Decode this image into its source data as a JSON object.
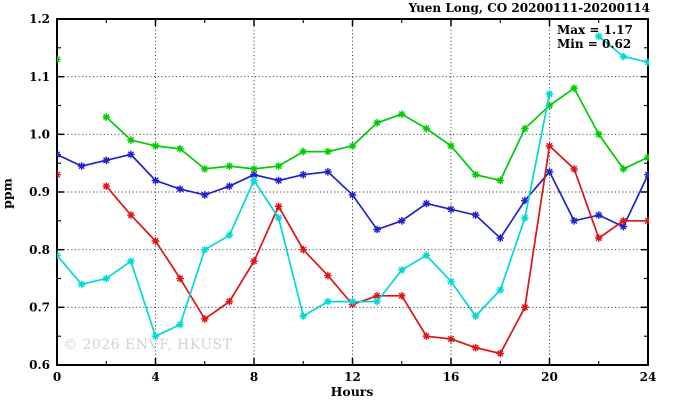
{
  "title": "Yuen Long, CO 20200111-20200114",
  "annotations": {
    "max_label": "Max = 1.17",
    "min_label": "Min = 0.62"
  },
  "watermark": "© 2026 ENVF, HKUST",
  "chart_data": {
    "type": "line",
    "title": "Yuen Long, CO 20200111-20200114",
    "xlabel": "Hours",
    "ylabel": "ppm",
    "xlim": [
      0,
      24
    ],
    "ylim": [
      0.6,
      1.2
    ],
    "grid": true,
    "legend_position": "none",
    "x_tick_values": [
      0,
      4,
      8,
      12,
      16,
      20,
      24
    ],
    "x_tick_labels": [
      "0",
      "4",
      "8",
      "12",
      "16",
      "20",
      "24"
    ],
    "x_minor_step": 2,
    "y_tick_values": [
      0.6,
      0.7,
      0.8,
      0.9,
      1.0,
      1.1,
      1.2
    ],
    "y_tick_labels": [
      "0.6",
      "0.7",
      "0.8",
      "0.9",
      "1.0",
      "1.1",
      "1.2"
    ],
    "y_minor_step": 0.05,
    "x_grid_values": [
      4,
      8,
      12,
      16,
      20
    ],
    "y_grid_values": [
      0.7,
      0.8,
      0.9,
      1.0,
      1.1
    ],
    "stat_max": 1.17,
    "stat_min": 0.62,
    "x": [
      0,
      1,
      2,
      3,
      4,
      5,
      6,
      7,
      8,
      9,
      10,
      11,
      12,
      13,
      14,
      15,
      16,
      17,
      18,
      19,
      20,
      21,
      22,
      23,
      24
    ],
    "series": [
      {
        "name": "series-green",
        "color": "#00cc00",
        "values": [
          1.13,
          null,
          1.03,
          0.99,
          0.98,
          0.975,
          0.94,
          0.945,
          0.94,
          0.945,
          0.97,
          0.97,
          0.98,
          1.02,
          1.035,
          1.01,
          0.98,
          0.93,
          0.92,
          1.01,
          1.05,
          1.08,
          1.0,
          0.94,
          0.96
        ]
      },
      {
        "name": "series-blue",
        "color": "#2222cc",
        "values": [
          0.965,
          0.945,
          0.955,
          0.965,
          0.92,
          0.905,
          0.895,
          0.91,
          0.93,
          0.92,
          0.93,
          0.935,
          0.895,
          0.835,
          0.85,
          0.88,
          0.87,
          0.86,
          0.82,
          0.885,
          0.935,
          0.85,
          0.86,
          0.84,
          0.93
        ]
      },
      {
        "name": "series-red",
        "color": "#dd1414",
        "values": [
          0.93,
          null,
          0.91,
          0.86,
          0.815,
          0.75,
          0.68,
          0.71,
          0.78,
          0.875,
          0.8,
          0.755,
          0.705,
          0.72,
          0.72,
          0.65,
          0.645,
          0.63,
          0.62,
          0.7,
          0.98,
          0.94,
          0.82,
          0.85,
          0.85
        ]
      },
      {
        "name": "series-cyan",
        "color": "#00d8d8",
        "values": [
          0.79,
          0.74,
          0.75,
          0.78,
          0.65,
          0.67,
          0.8,
          0.825,
          0.92,
          0.855,
          0.685,
          0.71,
          0.71,
          0.71,
          0.765,
          0.79,
          0.745,
          0.685,
          0.73,
          0.855,
          1.07,
          null,
          1.17,
          1.135,
          1.125
        ]
      }
    ]
  }
}
